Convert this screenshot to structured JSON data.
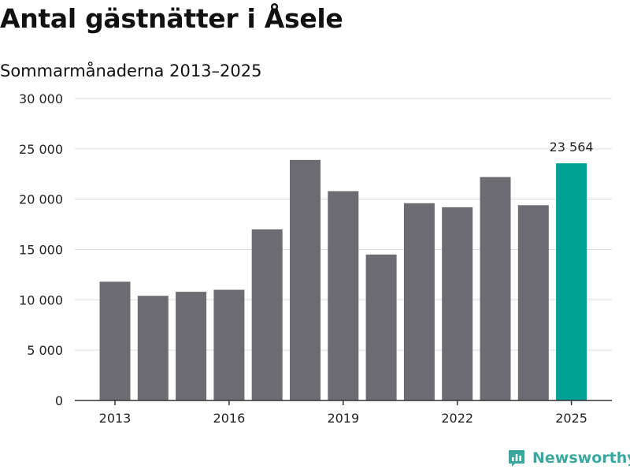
{
  "title": "Antal gästnätter i Åsele",
  "subtitle": "Sommarmånaderna 2013–2025",
  "brand": {
    "name": "Newsworthy",
    "icon": "newsworthy-logo-icon"
  },
  "colors": {
    "bar": "#6d6c72",
    "highlight": "#00a195",
    "grid": "#dcdcdc",
    "axis": "#333333",
    "brand": "#3aa89e"
  },
  "chart_data": {
    "type": "bar",
    "title": "Antal gästnätter i Åsele",
    "subtitle": "Sommarmånaderna 2013–2025",
    "xlabel": "",
    "ylabel": "",
    "categories": [
      "2013",
      "2014",
      "2015",
      "2016",
      "2017",
      "2018",
      "2019",
      "2020",
      "2021",
      "2022",
      "2023",
      "2024",
      "2025"
    ],
    "values": [
      11800,
      10400,
      10800,
      11000,
      17000,
      23900,
      20800,
      14500,
      19600,
      19200,
      22200,
      19400,
      23564
    ],
    "ylim": [
      0,
      30000
    ],
    "yticks": [
      0,
      5000,
      10000,
      15000,
      20000,
      25000,
      30000
    ],
    "ytick_labels": [
      "0",
      "5 000",
      "10 000",
      "15 000",
      "20 000",
      "25 000",
      "30 000"
    ],
    "xtick_labels": [
      "2013",
      "2016",
      "2019",
      "2022",
      "2025"
    ],
    "highlight_category": "2025",
    "data_labels": [
      {
        "category": "2025",
        "text": "23 564"
      }
    ],
    "grid": true,
    "legend": "none"
  }
}
